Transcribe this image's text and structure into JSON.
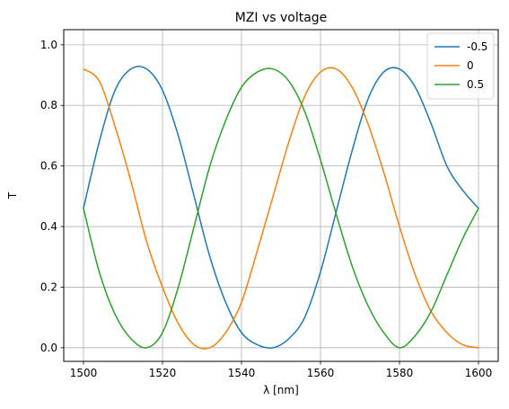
{
  "chart_data": {
    "type": "line",
    "title": "MZI vs voltage",
    "xlabel": "λ [nm]",
    "ylabel": "T",
    "xlim": [
      1495,
      1605
    ],
    "ylim": [
      -0.045,
      1.05
    ],
    "xticks": [
      1500,
      1520,
      1540,
      1560,
      1580,
      1600
    ],
    "yticks": [
      0.0,
      0.2,
      0.4,
      0.6,
      0.8,
      1.0
    ],
    "grid": true,
    "legend_position": "top-right",
    "series": [
      {
        "name": "-0.5",
        "color": "#1f77b4",
        "x": [
          1500,
          1504,
          1508,
          1512,
          1516,
          1520,
          1524,
          1528,
          1532,
          1536,
          1540,
          1544,
          1548,
          1552,
          1556,
          1560,
          1564,
          1568,
          1572,
          1576,
          1580,
          1584,
          1588,
          1592,
          1596,
          1600
        ],
        "y": [
          0.46,
          0.68,
          0.85,
          0.92,
          0.92,
          0.85,
          0.7,
          0.5,
          0.3,
          0.15,
          0.05,
          0.01,
          0.0,
          0.03,
          0.1,
          0.25,
          0.45,
          0.65,
          0.82,
          0.91,
          0.92,
          0.86,
          0.74,
          0.6,
          0.52,
          0.46
        ]
      },
      {
        "name": "0",
        "color": "#ff7f0e",
        "x": [
          1500,
          1504,
          1508,
          1512,
          1516,
          1520,
          1524,
          1528,
          1532,
          1536,
          1540,
          1544,
          1548,
          1552,
          1556,
          1560,
          1564,
          1568,
          1572,
          1576,
          1580,
          1584,
          1588,
          1592,
          1596,
          1600
        ],
        "y": [
          0.92,
          0.88,
          0.73,
          0.55,
          0.35,
          0.2,
          0.08,
          0.01,
          0.0,
          0.05,
          0.15,
          0.32,
          0.5,
          0.68,
          0.83,
          0.91,
          0.92,
          0.86,
          0.74,
          0.58,
          0.4,
          0.24,
          0.12,
          0.05,
          0.01,
          0.0
        ]
      },
      {
        "name": "0.5",
        "color": "#2ca02c",
        "x": [
          1500,
          1504,
          1508,
          1512,
          1516,
          1520,
          1524,
          1528,
          1532,
          1536,
          1540,
          1544,
          1548,
          1552,
          1556,
          1560,
          1564,
          1568,
          1572,
          1576,
          1580,
          1584,
          1588,
          1592,
          1596,
          1600
        ],
        "y": [
          0.46,
          0.25,
          0.11,
          0.03,
          0.0,
          0.05,
          0.2,
          0.4,
          0.6,
          0.75,
          0.86,
          0.91,
          0.92,
          0.88,
          0.78,
          0.62,
          0.44,
          0.27,
          0.14,
          0.05,
          0.0,
          0.04,
          0.12,
          0.24,
          0.36,
          0.46
        ]
      }
    ]
  }
}
